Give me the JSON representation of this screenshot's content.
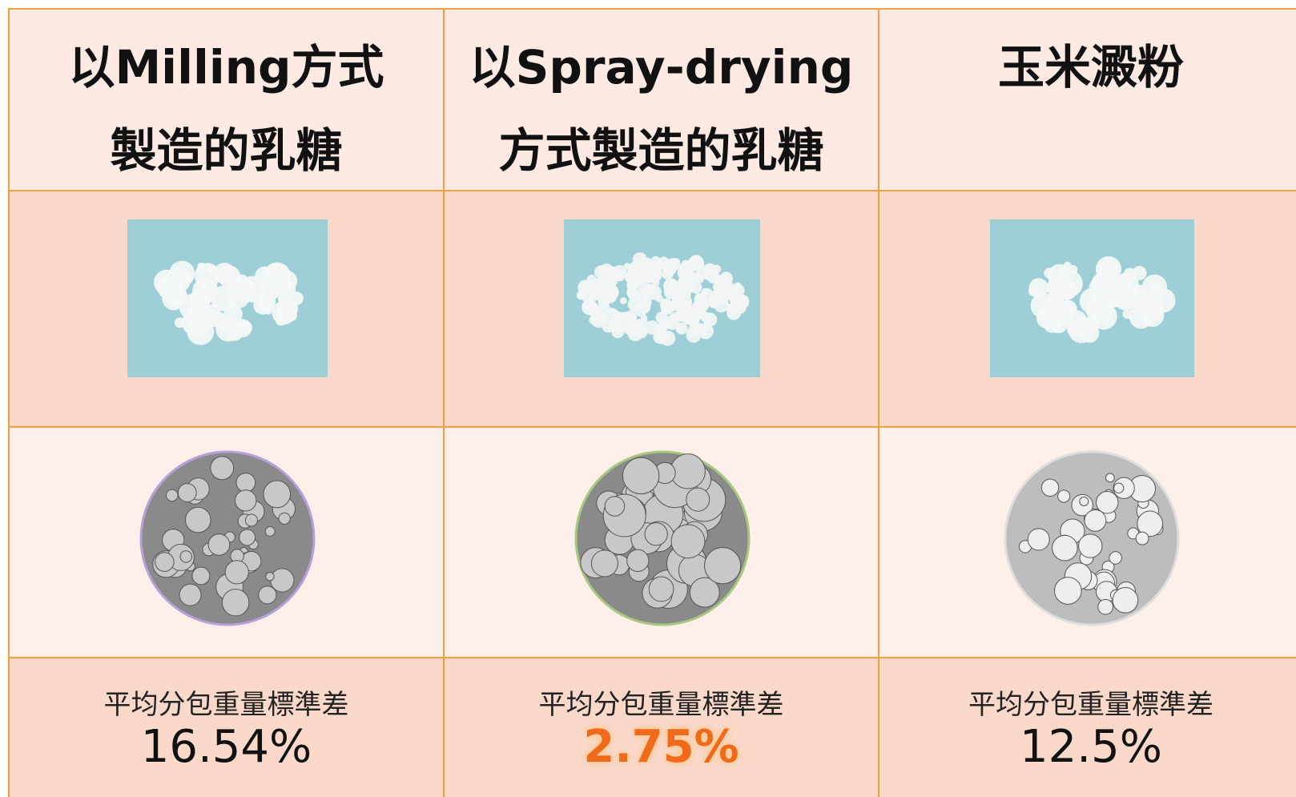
{
  "table": {
    "columns": [
      {
        "header": [
          "以Milling方式",
          "製造的乳糖"
        ],
        "label": "平均分包重量標準差",
        "value": "16.54%"
      },
      {
        "header": [
          "以Spray-drying",
          "方式製造的乳糖"
        ],
        "label": "平均分包重量標準差",
        "value": "2.75%"
      },
      {
        "header": [
          "玉米澱粉"
        ],
        "label": "平均分包重量標準差",
        "value": "12.5%"
      }
    ]
  }
}
